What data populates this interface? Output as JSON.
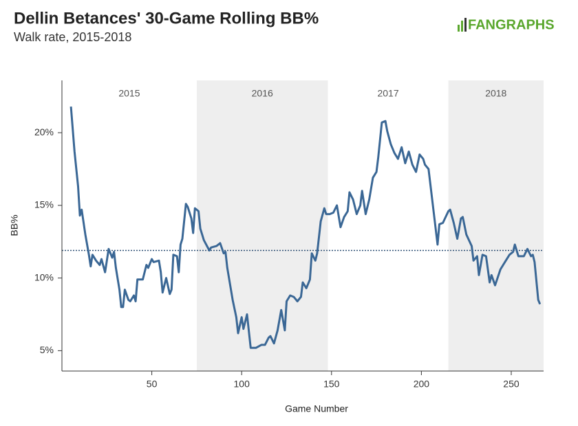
{
  "chart_data": {
    "type": "line",
    "title": "Dellin Betances' 30-Game Rolling BB%",
    "subtitle": "Walk rate, 2015-2018",
    "logo": "FANGRAPHS",
    "xlabel": "Game Number",
    "ylabel": "BB%",
    "xlim": [
      0,
      268
    ],
    "ylim": [
      3.6,
      23.6
    ],
    "xticks": [
      50,
      100,
      150,
      200,
      250
    ],
    "yticks": [
      {
        "value": 5,
        "label": "5%"
      },
      {
        "value": 10,
        "label": "10%"
      },
      {
        "value": 15,
        "label": "15%"
      },
      {
        "value": 20,
        "label": "20%"
      }
    ],
    "seasons": [
      {
        "label": "2015",
        "start": 0,
        "end": 75,
        "shaded": false
      },
      {
        "label": "2016",
        "start": 75,
        "end": 148,
        "shaded": true
      },
      {
        "label": "2017",
        "start": 148,
        "end": 215,
        "shaded": false
      },
      {
        "label": "2018",
        "start": 215,
        "end": 268,
        "shaded": true
      }
    ],
    "reference_line": 11.9,
    "series": [
      {
        "name": "BB%",
        "color": "#3a6795",
        "x": [
          5,
          7,
          9,
          10,
          11,
          13,
          15,
          16,
          17,
          19,
          21,
          22,
          24,
          26,
          28,
          29,
          30,
          32,
          33,
          34,
          35,
          37,
          38,
          40,
          41,
          42,
          45,
          47,
          48,
          50,
          51,
          54,
          55,
          56,
          58,
          60,
          61,
          62,
          64,
          65,
          66,
          67,
          69,
          70,
          72,
          73,
          74,
          76,
          77,
          79,
          82,
          83,
          86,
          88,
          90,
          91,
          92,
          95,
          97,
          98,
          100,
          101,
          103,
          105,
          108,
          111,
          113,
          115,
          116,
          118,
          120,
          122,
          124,
          125,
          127,
          129,
          131,
          133,
          134,
          136,
          138,
          139,
          141,
          142,
          144,
          146,
          147,
          149,
          151,
          153,
          155,
          157,
          159,
          160,
          162,
          164,
          166,
          167,
          169,
          171,
          173,
          175,
          176,
          178,
          180,
          181,
          183,
          185,
          187,
          189,
          191,
          193,
          195,
          197,
          199,
          201,
          202,
          204,
          206,
          209,
          210,
          212,
          215,
          216,
          218,
          220,
          222,
          223,
          225,
          228,
          229,
          231,
          232,
          234,
          236,
          238,
          239,
          241,
          244,
          247,
          249,
          251,
          252,
          254,
          257,
          259,
          261,
          262,
          263,
          265,
          266
        ],
        "values": [
          21.8,
          18.7,
          16.3,
          14.3,
          14.7,
          13.0,
          11.6,
          10.8,
          11.6,
          11.2,
          10.9,
          11.3,
          10.4,
          12.0,
          11.4,
          11.8,
          10.7,
          9.2,
          8.0,
          8.0,
          9.2,
          8.5,
          8.4,
          8.8,
          8.4,
          9.9,
          9.9,
          10.9,
          10.7,
          11.3,
          11.1,
          11.2,
          10.4,
          9.0,
          10.0,
          8.9,
          9.2,
          11.6,
          11.5,
          10.4,
          12.3,
          12.7,
          15.1,
          14.9,
          14.1,
          13.1,
          14.8,
          14.6,
          13.4,
          12.6,
          11.9,
          12.1,
          12.2,
          12.4,
          11.7,
          11.8,
          10.7,
          8.5,
          7.3,
          6.2,
          7.3,
          6.5,
          7.5,
          5.2,
          5.2,
          5.4,
          5.4,
          5.9,
          6.0,
          5.5,
          6.4,
          7.8,
          6.4,
          8.4,
          8.8,
          8.7,
          8.4,
          8.7,
          9.7,
          9.3,
          9.9,
          11.7,
          11.2,
          11.7,
          13.9,
          14.8,
          14.4,
          14.4,
          14.5,
          15.0,
          13.5,
          14.2,
          14.6,
          15.9,
          15.4,
          14.4,
          15.0,
          16.0,
          14.4,
          15.4,
          16.9,
          17.3,
          18.3,
          20.7,
          20.8,
          20.1,
          19.2,
          18.6,
          18.2,
          19.0,
          17.9,
          18.7,
          17.8,
          17.3,
          18.5,
          18.2,
          17.8,
          17.5,
          15.4,
          12.3,
          13.7,
          13.8,
          14.6,
          14.7,
          13.8,
          12.7,
          14.1,
          14.2,
          13.0,
          12.2,
          11.2,
          11.5,
          10.2,
          11.6,
          11.5,
          9.7,
          10.2,
          9.5,
          10.6,
          11.2,
          11.6,
          11.8,
          12.3,
          11.5,
          11.5,
          12.0,
          11.5,
          11.6,
          11.1,
          8.5,
          8.2
        ]
      }
    ]
  }
}
